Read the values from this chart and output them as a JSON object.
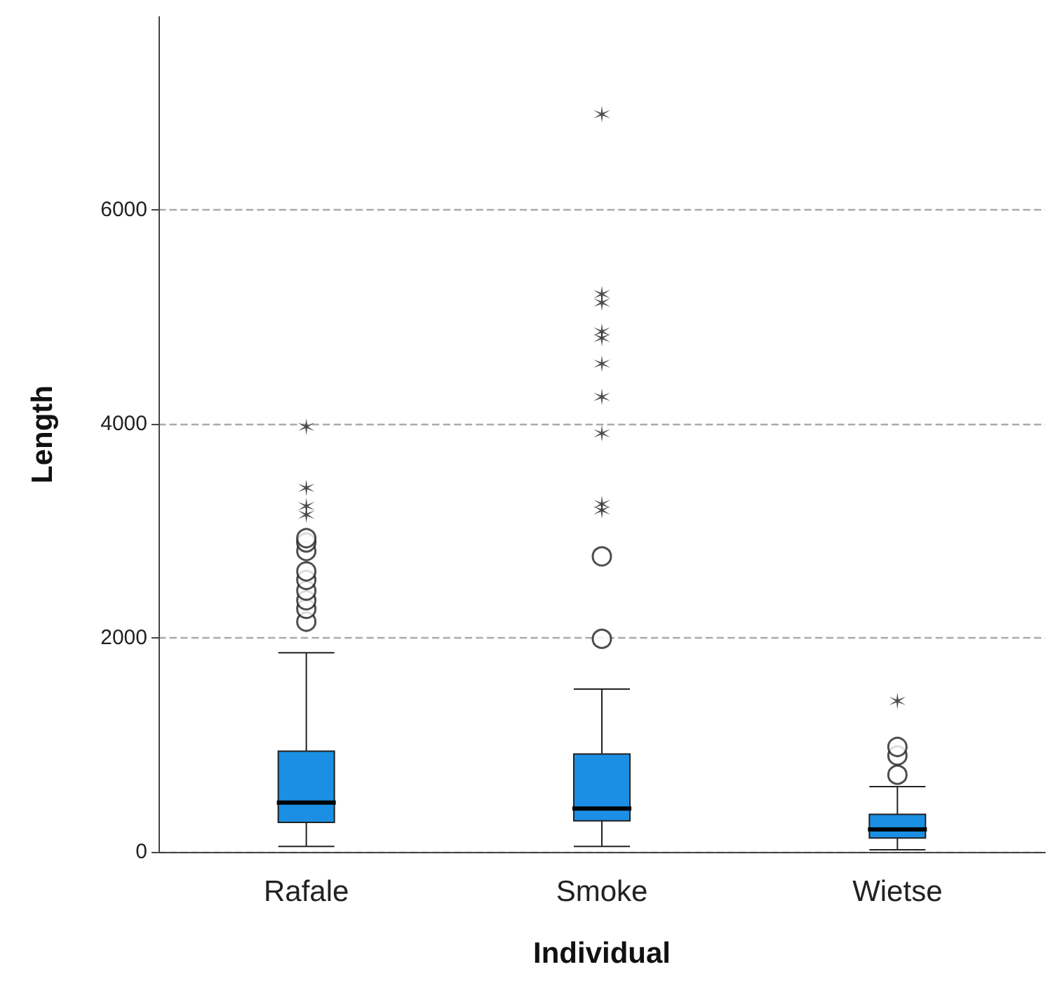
{
  "chart_data": {
    "type": "box",
    "xlabel": "Individual",
    "ylabel": "Length",
    "categories": [
      "Rafale",
      "Smoke",
      "Wietse"
    ],
    "color": "#1b8fe3",
    "boxes": [
      {
        "low": 50,
        "q1": 275,
        "median": 460,
        "q3": 940,
        "high": 1860,
        "outliers": [
          2150,
          2270,
          2350,
          2440,
          2540,
          2620,
          2810,
          2890,
          2930,
          3150,
          3230,
          3400,
          3970
        ]
      },
      {
        "low": 50,
        "q1": 290,
        "median": 405,
        "q3": 915,
        "high": 1520,
        "outliers": [
          1990,
          2760,
          3190,
          3250,
          3910,
          4250,
          4560,
          4800,
          4860,
          5130,
          5210,
          6890
        ]
      },
      {
        "low": 20,
        "q1": 130,
        "median": 210,
        "q3": 350,
        "high": 610,
        "outliers": [
          720,
          900,
          980,
          1410
        ]
      }
    ],
    "ylim": [
      0,
      7800
    ],
    "yticks": [
      0,
      2000,
      4000,
      6000
    ],
    "grid": "y"
  }
}
